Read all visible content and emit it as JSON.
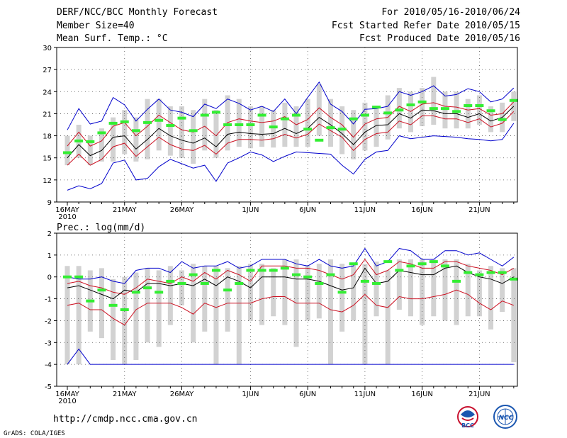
{
  "header": {
    "title": "DERF/NCC/BCC Monthly Forecast",
    "member_size": "Member Size=40",
    "variable": "Mean Surf. Temp.: °C",
    "period": "For 2010/05/16-2010/06/24",
    "started": "Fcst Started Refer Date 2010/05/15",
    "produced": "Fcst Produced Date 2010/05/16"
  },
  "footer": {
    "url": "http://cmdp.ncc.cma.gov.cn",
    "credit": "GrADS: COLA/IGES",
    "logo_bcc": "BCC",
    "logo_ncc": "NCC"
  },
  "colors": {
    "max_line": "#0000cc",
    "min_line": "#0000cc",
    "upper_line": "#cc1122",
    "lower_line": "#cc1122",
    "mean_line": "#000000",
    "box": "#d2d2d2",
    "median": "#33ee33"
  },
  "chart_data": [
    {
      "type": "line",
      "title": "Mean Surf. Temp.: °C",
      "x_ticks": [
        "16MAY",
        "21MAY",
        "26MAY",
        "1JUN",
        "6JUN",
        "11JUN",
        "16JUN",
        "21JUN"
      ],
      "x_tick_day_index": [
        0,
        5,
        10,
        16,
        21,
        26,
        31,
        36
      ],
      "x_year_label": "2010",
      "ylim": [
        9,
        30
      ],
      "yticks": [
        9,
        12,
        15,
        18,
        21,
        24,
        27,
        30
      ],
      "n_days": 40,
      "series": [
        {
          "name": "max",
          "values": [
            10.6,
            11.2,
            10.8,
            11.5,
            14.3,
            14.7,
            12.0,
            12.2,
            13.8,
            14.8,
            14.2,
            13.6,
            14.0,
            11.8,
            14.3,
            15.0,
            15.8,
            15.4,
            14.5,
            15.2,
            15.8,
            15.7,
            15.6,
            15.5,
            14.0,
            12.8,
            14.8,
            15.8,
            16.0,
            18.0,
            17.6,
            17.8,
            18.0,
            17.9,
            17.8,
            17.6,
            17.5,
            17.3,
            17.5,
            19.7
          ]
        },
        {
          "name": "upper",
          "values": [
            16.6,
            18.5,
            16.6,
            17.3,
            19.3,
            19.8,
            18.0,
            19.3,
            20.8,
            19.8,
            18.8,
            18.5,
            19.3,
            18.0,
            19.8,
            20.3,
            20.0,
            19.8,
            20.0,
            20.6,
            19.5,
            20.2,
            21.8,
            20.5,
            19.5,
            17.8,
            19.6,
            20.3,
            20.5,
            22.0,
            21.3,
            22.3,
            22.5,
            22.0,
            21.9,
            21.5,
            21.7,
            20.8,
            21.0,
            22.6
          ]
        },
        {
          "name": "mean",
          "values": [
            15.0,
            16.8,
            15.3,
            16.0,
            17.8,
            18.0,
            16.2,
            17.5,
            19.0,
            18.0,
            17.4,
            17.0,
            17.7,
            16.5,
            18.2,
            18.5,
            18.3,
            18.2,
            18.3,
            19.0,
            18.3,
            19.0,
            20.5,
            19.5,
            18.3,
            16.8,
            18.5,
            19.4,
            19.5,
            21.0,
            20.4,
            21.5,
            21.4,
            21.0,
            21.0,
            20.5,
            21.0,
            20.0,
            20.5,
            22.0
          ]
        },
        {
          "name": "lower",
          "values": [
            14.0,
            15.5,
            14.0,
            14.8,
            16.5,
            17.0,
            15.2,
            16.5,
            17.8,
            16.8,
            16.2,
            16.0,
            16.7,
            15.5,
            17.0,
            17.5,
            17.5,
            17.4,
            17.6,
            18.2,
            17.7,
            18.2,
            19.6,
            18.7,
            17.8,
            16.0,
            17.5,
            18.3,
            18.5,
            20.0,
            19.5,
            20.7,
            20.7,
            20.3,
            20.3,
            19.8,
            20.3,
            19.2,
            19.7,
            21.3
          ]
        },
        {
          "name": "min",
          "values": [
            18.8,
            21.7,
            19.6,
            20.0,
            23.2,
            22.2,
            20.0,
            21.6,
            23.0,
            21.5,
            21.2,
            20.6,
            22.3,
            21.7,
            23.0,
            22.4,
            21.5,
            22.0,
            21.3,
            23.0,
            21.0,
            23.2,
            25.3,
            22.3,
            21.3,
            19.6,
            21.6,
            21.7,
            22.0,
            24.0,
            23.5,
            24.0,
            24.8,
            23.4,
            23.6,
            24.4,
            24.0,
            22.6,
            23.0,
            24.5
          ]
        }
      ],
      "boxes": {
        "low": [
          14.0,
          15.0,
          14.0,
          14.5,
          14.5,
          15.5,
          14.5,
          14.8,
          16.0,
          15.3,
          15.0,
          14.2,
          16.0,
          15.0,
          16.0,
          16.5,
          16.3,
          16.5,
          16.4,
          16.5,
          16.5,
          16.5,
          18.0,
          16.5,
          15.5,
          14.8,
          16.0,
          16.5,
          17.5,
          19.0,
          18.5,
          19.3,
          19.5,
          19.0,
          19.0,
          19.0,
          19.5,
          18.5,
          18.5,
          20.0
        ],
        "high": [
          18.0,
          19.5,
          18.0,
          19.0,
          20.5,
          21.5,
          20.5,
          23.0,
          23.0,
          22.0,
          22.0,
          21.5,
          23.0,
          21.5,
          23.5,
          23.0,
          22.0,
          22.0,
          21.5,
          22.5,
          22.0,
          23.0,
          25.0,
          23.0,
          22.0,
          21.5,
          22.5,
          22.0,
          23.5,
          24.5,
          24.0,
          24.5,
          26.0,
          24.0,
          24.0,
          23.0,
          23.5,
          22.0,
          22.5,
          24.0
        ],
        "median": [
          15.7,
          17.3,
          17.2,
          18.4,
          19.7,
          19.9,
          18.7,
          19.8,
          20.1,
          19.4,
          20.4,
          18.7,
          20.8,
          21.2,
          19.5,
          19.5,
          19.5,
          20.8,
          19.2,
          20.3,
          20.8,
          18.9,
          17.4,
          19.1,
          18.9,
          20.3,
          20.8,
          21.9,
          21.1,
          21.5,
          22.2,
          22.6,
          21.7,
          21.7,
          21.3,
          22.1,
          22.1,
          21.4,
          20.2,
          22.8
        ]
      }
    },
    {
      "type": "line",
      "title": "Prec.: log(mm/d)",
      "x_ticks": [
        "16MAY",
        "21MAY",
        "26MAY",
        "1JUN",
        "6JUN",
        "11JUN",
        "16JUN",
        "21JUN"
      ],
      "x_tick_day_index": [
        0,
        5,
        10,
        16,
        21,
        26,
        31,
        36
      ],
      "x_year_label": "2010",
      "ylim": [
        -5,
        2
      ],
      "yticks": [
        -5,
        -4,
        -3,
        -2,
        -1,
        0,
        1,
        2
      ],
      "n_days": 40,
      "series": [
        {
          "name": "max",
          "values": [
            0.0,
            -0.1,
            -0.1,
            0.0,
            -0.2,
            -0.3,
            0.3,
            0.4,
            0.4,
            0.2,
            0.7,
            0.4,
            0.5,
            0.5,
            0.7,
            0.4,
            0.5,
            0.8,
            0.8,
            0.8,
            0.6,
            0.5,
            0.8,
            0.5,
            0.4,
            0.5,
            1.3,
            0.5,
            0.7,
            1.3,
            1.2,
            0.8,
            0.8,
            1.2,
            1.2,
            1.0,
            1.1,
            0.8,
            0.5,
            0.9
          ]
        },
        {
          "name": "upper",
          "values": [
            -0.3,
            -0.2,
            -0.4,
            -0.5,
            -0.7,
            -0.8,
            -0.5,
            -0.1,
            -0.2,
            -0.3,
            0.0,
            -0.2,
            0.2,
            -0.1,
            0.3,
            0.1,
            -0.2,
            0.5,
            0.5,
            0.5,
            0.4,
            0.4,
            0.3,
            0.1,
            -0.1,
            0.1,
            0.8,
            0.1,
            0.3,
            0.7,
            0.6,
            0.4,
            0.4,
            0.7,
            0.7,
            0.5,
            0.4,
            0.3,
            0.1,
            0.4
          ]
        },
        {
          "name": "mean",
          "values": [
            -0.5,
            -0.4,
            -0.6,
            -0.8,
            -1.0,
            -0.6,
            -0.7,
            -0.3,
            -0.3,
            -0.4,
            -0.3,
            -0.4,
            -0.1,
            -0.4,
            0.0,
            -0.2,
            -0.5,
            0.0,
            0.0,
            0.0,
            -0.1,
            -0.1,
            -0.2,
            -0.4,
            -0.6,
            -0.5,
            0.4,
            -0.3,
            -0.2,
            0.3,
            0.2,
            0.1,
            0.1,
            0.4,
            0.5,
            0.2,
            0.0,
            -0.1,
            -0.3,
            0.0
          ]
        },
        {
          "name": "lower",
          "values": [
            -1.3,
            -1.2,
            -1.5,
            -1.5,
            -1.9,
            -2.2,
            -1.5,
            -1.2,
            -1.2,
            -1.2,
            -1.4,
            -1.7,
            -1.2,
            -1.4,
            -1.2,
            -1.2,
            -1.2,
            -1.0,
            -0.9,
            -0.9,
            -1.2,
            -1.2,
            -1.2,
            -1.5,
            -1.6,
            -1.3,
            -0.8,
            -1.3,
            -1.4,
            -0.9,
            -1.0,
            -1.0,
            -0.9,
            -0.8,
            -0.6,
            -0.8,
            -1.2,
            -1.5,
            -1.1,
            -1.3
          ]
        },
        {
          "name": "min",
          "values": [
            -4.0,
            -3.3,
            -4.0,
            -4.0,
            -4.0,
            -4.0,
            -4.0,
            -4.0,
            -4.0,
            -4.0,
            -4.0,
            -4.0,
            -4.0,
            -4.0,
            -4.0,
            -4.0,
            -4.0,
            -4.0,
            -4.0,
            -4.0,
            -4.0,
            -4.0,
            -4.0,
            -4.0,
            -4.0,
            -4.0,
            -4.0,
            -4.0,
            -4.0,
            -4.0,
            -4.0,
            -4.0,
            -4.0,
            -4.0,
            -4.0,
            -4.0,
            -4.0,
            -4.0,
            -4.0,
            -4.0
          ]
        }
      ],
      "boxes": {
        "low": [
          -4.0,
          -4.0,
          -2.5,
          -2.8,
          -3.8,
          -4.0,
          -3.8,
          -3.0,
          -3.2,
          -2.2,
          -1.3,
          -3.0,
          -2.5,
          -4.0,
          -2.5,
          -4.0,
          -2.0,
          -2.2,
          -1.8,
          -2.2,
          -3.2,
          -2.0,
          -1.9,
          -4.0,
          -2.5,
          -2.0,
          -4.0,
          -1.8,
          -4.0,
          -1.5,
          -1.8,
          -2.2,
          -1.8,
          -2.0,
          -2.2,
          -1.8,
          -1.8,
          -2.4,
          -1.6,
          -3.9
        ],
        "high": [
          0.5,
          0.5,
          0.3,
          0.4,
          -0.1,
          0.0,
          0.2,
          0.4,
          0.3,
          0.5,
          0.3,
          0.6,
          0.5,
          0.5,
          0.4,
          0.5,
          0.6,
          0.6,
          0.4,
          0.8,
          0.8,
          0.5,
          0.6,
          0.8,
          0.6,
          0.6,
          0.6,
          0.7,
          0.3,
          0.8,
          0.8,
          0.8,
          0.8,
          0.8,
          0.8,
          0.6,
          0.3,
          0.5,
          0.4,
          0.4
        ],
        "median": [
          0.0,
          0.0,
          -1.1,
          -0.6,
          -1.3,
          -1.5,
          -0.7,
          -0.5,
          -0.7,
          -0.2,
          -0.3,
          0.1,
          -0.3,
          0.3,
          -0.6,
          -0.3,
          0.3,
          0.3,
          0.3,
          0.4,
          0.1,
          0.0,
          -0.3,
          0.1,
          -0.7,
          0.6,
          -0.2,
          -0.3,
          0.7,
          0.3,
          0.5,
          0.6,
          0.7,
          0.5,
          -0.2,
          0.2,
          0.1,
          0.2,
          0.2,
          -0.1
        ]
      }
    }
  ]
}
